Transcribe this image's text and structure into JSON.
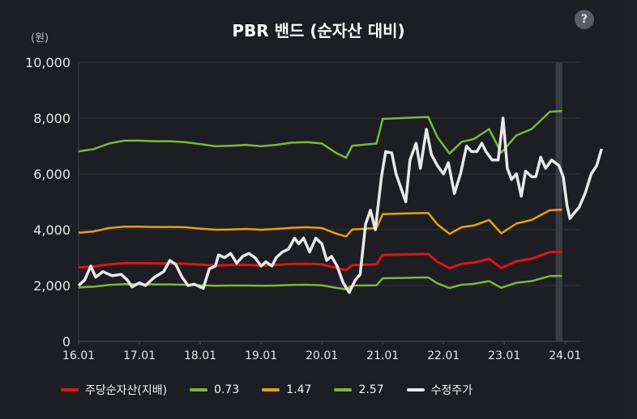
{
  "title": "PBR 밴드 (순자산 대비)",
  "unit_label": "(원)",
  "help_icon": "?",
  "colors": {
    "bps": "#e01414",
    "band073": "#7ab83a",
    "band147": "#e8a010",
    "band257": "#7ab83a",
    "price": "#e8e8e8"
  },
  "legend": [
    {
      "name": "주당순자산(지배)",
      "color": "#e01414"
    },
    {
      "name": "0.73",
      "color": "#7ab83a"
    },
    {
      "name": "1.47",
      "color": "#e8a010"
    },
    {
      "name": "2.57",
      "color": "#7ab83a"
    },
    {
      "name": "수정주가",
      "color": "#e8e8e8"
    }
  ],
  "chart_data": {
    "type": "line",
    "title": "PBR 밴드 (순자산 대비)",
    "ylabel": "(원)",
    "ylim": [
      0,
      10000
    ],
    "yticks": [
      "0",
      "2,000",
      "4,000",
      "6,000",
      "8,000",
      "10,000"
    ],
    "xlim": [
      2016.0,
      2024.25
    ],
    "xticks": [
      "16.01",
      "17.01",
      "18.01",
      "19.01",
      "20.01",
      "21.01",
      "22.01",
      "23.01",
      "24.01"
    ],
    "grid": "horizontal",
    "legend_position": "bottom",
    "series": [
      {
        "name": "주당순자산(지배)",
        "points": [
          [
            2016.0,
            2650
          ],
          [
            2016.25,
            2680
          ],
          [
            2016.5,
            2760
          ],
          [
            2016.75,
            2800
          ],
          [
            2017.0,
            2800
          ],
          [
            2017.25,
            2790
          ],
          [
            2017.5,
            2790
          ],
          [
            2017.75,
            2780
          ],
          [
            2018.0,
            2750
          ],
          [
            2018.25,
            2720
          ],
          [
            2018.5,
            2730
          ],
          [
            2018.75,
            2740
          ],
          [
            2019.0,
            2720
          ],
          [
            2019.25,
            2740
          ],
          [
            2019.5,
            2770
          ],
          [
            2019.75,
            2780
          ],
          [
            2020.0,
            2760
          ],
          [
            2020.25,
            2620
          ],
          [
            2020.4,
            2560
          ],
          [
            2020.5,
            2730
          ],
          [
            2020.9,
            2760
          ],
          [
            2021.0,
            3100
          ],
          [
            2021.5,
            3120
          ],
          [
            2021.75,
            3130
          ],
          [
            2021.9,
            2850
          ],
          [
            2022.1,
            2620
          ],
          [
            2022.3,
            2780
          ],
          [
            2022.5,
            2820
          ],
          [
            2022.75,
            2960
          ],
          [
            2022.95,
            2630
          ],
          [
            2023.2,
            2870
          ],
          [
            2023.45,
            2960
          ],
          [
            2023.75,
            3200
          ],
          [
            2023.95,
            3210
          ]
        ]
      },
      {
        "name": "0.73",
        "points": [
          [
            2016.0,
            1930
          ],
          [
            2016.25,
            1960
          ],
          [
            2016.5,
            2020
          ],
          [
            2016.75,
            2050
          ],
          [
            2017.0,
            2045
          ],
          [
            2017.25,
            2040
          ],
          [
            2017.5,
            2040
          ],
          [
            2017.75,
            2030
          ],
          [
            2018.0,
            2010
          ],
          [
            2018.25,
            1990
          ],
          [
            2018.5,
            2000
          ],
          [
            2018.75,
            2000
          ],
          [
            2019.0,
            1990
          ],
          [
            2019.25,
            2000
          ],
          [
            2019.5,
            2020
          ],
          [
            2019.75,
            2030
          ],
          [
            2020.0,
            2010
          ],
          [
            2020.25,
            1910
          ],
          [
            2020.4,
            1870
          ],
          [
            2020.5,
            2000
          ],
          [
            2020.9,
            2010
          ],
          [
            2021.0,
            2260
          ],
          [
            2021.5,
            2280
          ],
          [
            2021.75,
            2290
          ],
          [
            2021.9,
            2080
          ],
          [
            2022.1,
            1910
          ],
          [
            2022.3,
            2030
          ],
          [
            2022.5,
            2060
          ],
          [
            2022.75,
            2160
          ],
          [
            2022.95,
            1920
          ],
          [
            2023.2,
            2100
          ],
          [
            2023.45,
            2160
          ],
          [
            2023.75,
            2340
          ],
          [
            2023.95,
            2345
          ]
        ]
      },
      {
        "name": "1.47",
        "points": [
          [
            2016.0,
            3890
          ],
          [
            2016.25,
            3940
          ],
          [
            2016.5,
            4060
          ],
          [
            2016.75,
            4110
          ],
          [
            2017.0,
            4110
          ],
          [
            2017.25,
            4100
          ],
          [
            2017.5,
            4100
          ],
          [
            2017.75,
            4090
          ],
          [
            2018.0,
            4040
          ],
          [
            2018.25,
            4000
          ],
          [
            2018.5,
            4010
          ],
          [
            2018.75,
            4030
          ],
          [
            2019.0,
            4000
          ],
          [
            2019.25,
            4030
          ],
          [
            2019.5,
            4070
          ],
          [
            2019.75,
            4090
          ],
          [
            2020.0,
            4060
          ],
          [
            2020.25,
            3850
          ],
          [
            2020.4,
            3760
          ],
          [
            2020.5,
            4010
          ],
          [
            2020.9,
            4060
          ],
          [
            2021.0,
            4560
          ],
          [
            2021.5,
            4590
          ],
          [
            2021.75,
            4600
          ],
          [
            2021.9,
            4190
          ],
          [
            2022.1,
            3850
          ],
          [
            2022.3,
            4090
          ],
          [
            2022.5,
            4150
          ],
          [
            2022.75,
            4350
          ],
          [
            2022.95,
            3870
          ],
          [
            2023.2,
            4220
          ],
          [
            2023.45,
            4350
          ],
          [
            2023.75,
            4700
          ],
          [
            2023.95,
            4720
          ]
        ]
      },
      {
        "name": "2.57",
        "points": [
          [
            2016.0,
            6810
          ],
          [
            2016.25,
            6890
          ],
          [
            2016.5,
            7090
          ],
          [
            2016.75,
            7190
          ],
          [
            2017.0,
            7190
          ],
          [
            2017.25,
            7170
          ],
          [
            2017.5,
            7170
          ],
          [
            2017.75,
            7140
          ],
          [
            2018.0,
            7070
          ],
          [
            2018.25,
            6990
          ],
          [
            2018.5,
            7010
          ],
          [
            2018.75,
            7040
          ],
          [
            2019.0,
            6990
          ],
          [
            2019.25,
            7040
          ],
          [
            2019.5,
            7120
          ],
          [
            2019.75,
            7140
          ],
          [
            2020.0,
            7090
          ],
          [
            2020.25,
            6730
          ],
          [
            2020.4,
            6580
          ],
          [
            2020.5,
            7010
          ],
          [
            2020.9,
            7090
          ],
          [
            2021.0,
            7970
          ],
          [
            2021.5,
            8020
          ],
          [
            2021.75,
            8040
          ],
          [
            2021.9,
            7320
          ],
          [
            2022.1,
            6730
          ],
          [
            2022.3,
            7150
          ],
          [
            2022.5,
            7250
          ],
          [
            2022.75,
            7610
          ],
          [
            2022.95,
            6760
          ],
          [
            2023.2,
            7380
          ],
          [
            2023.45,
            7610
          ],
          [
            2023.75,
            8230
          ],
          [
            2023.95,
            8250
          ]
        ]
      },
      {
        "name": "수정주가",
        "points": [
          [
            2016.0,
            2000
          ],
          [
            2016.1,
            2200
          ],
          [
            2016.2,
            2700
          ],
          [
            2016.28,
            2300
          ],
          [
            2016.4,
            2500
          ],
          [
            2016.55,
            2350
          ],
          [
            2016.7,
            2400
          ],
          [
            2016.8,
            2200
          ],
          [
            2016.88,
            1950
          ],
          [
            2017.0,
            2100
          ],
          [
            2017.1,
            2000
          ],
          [
            2017.25,
            2300
          ],
          [
            2017.4,
            2500
          ],
          [
            2017.5,
            2900
          ],
          [
            2017.6,
            2750
          ],
          [
            2017.7,
            2300
          ],
          [
            2017.8,
            2000
          ],
          [
            2017.9,
            2050
          ],
          [
            2018.05,
            1900
          ],
          [
            2018.15,
            2600
          ],
          [
            2018.25,
            2700
          ],
          [
            2018.3,
            3100
          ],
          [
            2018.4,
            3000
          ],
          [
            2018.5,
            3150
          ],
          [
            2018.6,
            2800
          ],
          [
            2018.7,
            3050
          ],
          [
            2018.8,
            3150
          ],
          [
            2018.9,
            3000
          ],
          [
            2019.0,
            2700
          ],
          [
            2019.08,
            2850
          ],
          [
            2019.18,
            2700
          ],
          [
            2019.25,
            3000
          ],
          [
            2019.35,
            3200
          ],
          [
            2019.45,
            3300
          ],
          [
            2019.55,
            3700
          ],
          [
            2019.62,
            3500
          ],
          [
            2019.7,
            3700
          ],
          [
            2019.8,
            3200
          ],
          [
            2019.9,
            3700
          ],
          [
            2020.0,
            3500
          ],
          [
            2020.08,
            2900
          ],
          [
            2020.16,
            3050
          ],
          [
            2020.25,
            2700
          ],
          [
            2020.35,
            2100
          ],
          [
            2020.45,
            1750
          ],
          [
            2020.55,
            2200
          ],
          [
            2020.63,
            2400
          ],
          [
            2020.72,
            4200
          ],
          [
            2020.8,
            4700
          ],
          [
            2020.88,
            4000
          ],
          [
            2020.98,
            5900
          ],
          [
            2021.05,
            6800
          ],
          [
            2021.15,
            6750
          ],
          [
            2021.22,
            6000
          ],
          [
            2021.3,
            5500
          ],
          [
            2021.38,
            5000
          ],
          [
            2021.45,
            6500
          ],
          [
            2021.55,
            7100
          ],
          [
            2021.62,
            6200
          ],
          [
            2021.72,
            7600
          ],
          [
            2021.8,
            6700
          ],
          [
            2021.9,
            6300
          ],
          [
            2022.0,
            6000
          ],
          [
            2022.08,
            6400
          ],
          [
            2022.18,
            5300
          ],
          [
            2022.28,
            6000
          ],
          [
            2022.38,
            7000
          ],
          [
            2022.46,
            6800
          ],
          [
            2022.55,
            6800
          ],
          [
            2022.63,
            7100
          ],
          [
            2022.7,
            6800
          ],
          [
            2022.8,
            6500
          ],
          [
            2022.9,
            6500
          ],
          [
            2022.98,
            8000
          ],
          [
            2023.05,
            6200
          ],
          [
            2023.12,
            5800
          ],
          [
            2023.2,
            6000
          ],
          [
            2023.28,
            5200
          ],
          [
            2023.35,
            6100
          ],
          [
            2023.45,
            5900
          ],
          [
            2023.52,
            5900
          ],
          [
            2023.6,
            6600
          ],
          [
            2023.68,
            6200
          ],
          [
            2023.78,
            6500
          ],
          [
            2023.9,
            6300
          ],
          [
            2023.97,
            5900
          ],
          [
            2024.03,
            4900
          ],
          [
            2024.08,
            4400
          ],
          [
            2024.15,
            4600
          ],
          [
            2024.23,
            4800
          ],
          [
            2024.33,
            5300
          ],
          [
            2024.43,
            6000
          ],
          [
            2024.52,
            6300
          ],
          [
            2024.6,
            6900
          ]
        ]
      }
    ],
    "highlight_x": 2023.9
  }
}
